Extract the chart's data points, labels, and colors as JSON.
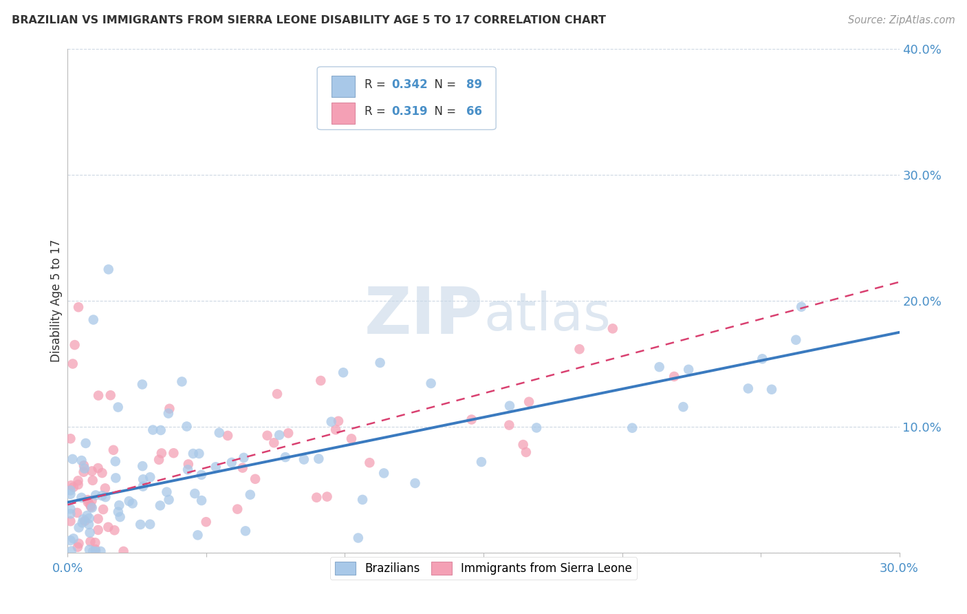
{
  "title": "BRAZILIAN VS IMMIGRANTS FROM SIERRA LEONE DISABILITY AGE 5 TO 17 CORRELATION CHART",
  "source": "Source: ZipAtlas.com",
  "ylabel": "Disability Age 5 to 17",
  "xlim": [
    0,
    0.3
  ],
  "ylim": [
    0,
    0.4
  ],
  "blue_R": 0.342,
  "blue_N": 89,
  "pink_R": 0.319,
  "pink_N": 66,
  "blue_color": "#a8c8e8",
  "pink_color": "#f4a0b5",
  "blue_line_color": "#3a7abf",
  "pink_line_color": "#d94070",
  "watermark_color": "#c8d8e8",
  "background_color": "#ffffff",
  "grid_color": "#c8d4e0",
  "blue_line_start_y": 0.04,
  "blue_line_end_y": 0.175,
  "pink_line_start_y": 0.038,
  "pink_line_end_y": 0.215
}
